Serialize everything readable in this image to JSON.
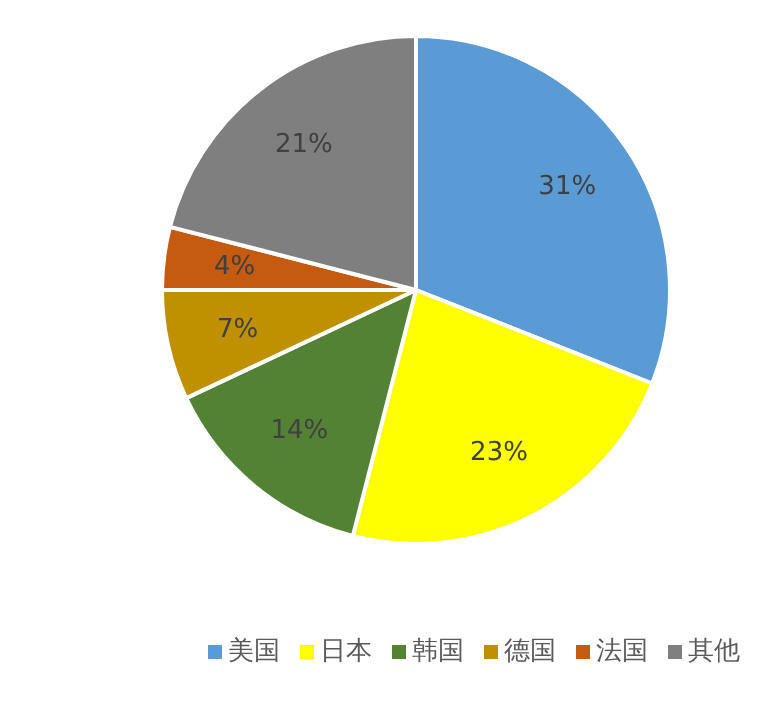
{
  "chart_data": {
    "type": "pie",
    "categories": [
      "美国",
      "日本",
      "韩国",
      "德国",
      "法国",
      "其他"
    ],
    "values": [
      31,
      23,
      14,
      7,
      4,
      21
    ],
    "colors": [
      "#5b9bd5",
      "#ffff00",
      "#548235",
      "#bf9000",
      "#c55a11",
      "#7f7f7f"
    ],
    "value_labels": [
      "31%",
      "23%",
      "14%",
      "7%",
      "4%",
      "21%"
    ],
    "legend": "bottom"
  }
}
